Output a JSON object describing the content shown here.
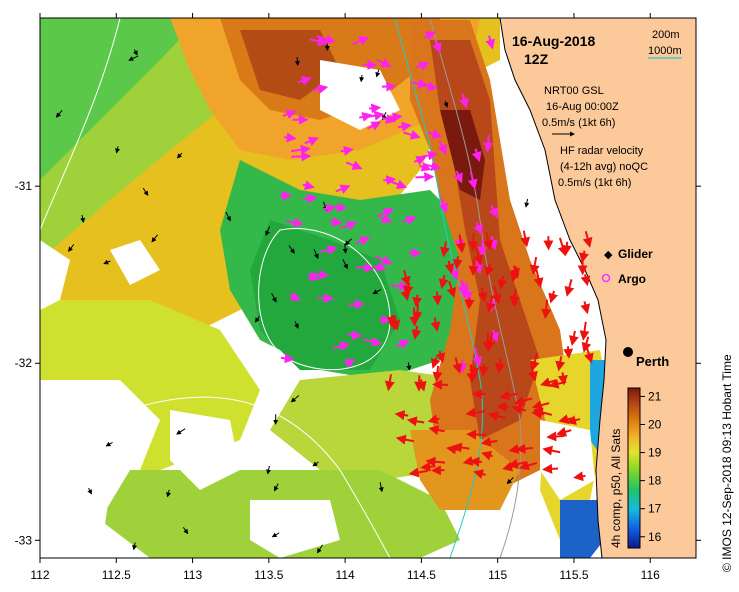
{
  "title": {
    "date": "16-Aug-2018",
    "time": "12Z"
  },
  "isobath_legend": {
    "line1": "200m",
    "line2": "1000m",
    "color_200": "#9a9a9a",
    "color_1000": "#22c9c9"
  },
  "gsl_legend": {
    "line1": "NRT00 GSL",
    "line2": "16-Aug 00:00Z",
    "line3": "0.5m/s (1kt 6h)"
  },
  "hf_legend": {
    "line1": "HF radar velocity",
    "line2": "(4-12h avg) noQC",
    "line3": "0.5m/s (1kt 6h)"
  },
  "markers": {
    "glider": "Glider",
    "argo": "Argo",
    "marker_color": "#ff33ff"
  },
  "place": {
    "name": "Perth"
  },
  "axes": {
    "x_ticks": [
      "112",
      "112.5",
      "113",
      "113.5",
      "114",
      "114.5",
      "115",
      "115.5",
      "116"
    ],
    "y_ticks": [
      "-31",
      "-32",
      "-33"
    ],
    "x_range": [
      112,
      116.3
    ],
    "y_range": [
      -33.1,
      -30.05
    ]
  },
  "colorbar": {
    "label": "4h comp, p50, All Sats",
    "ticks": [
      "21",
      "20",
      "19",
      "18",
      "17",
      "16"
    ],
    "range": [
      15.6,
      21.3
    ],
    "colors": [
      "#0a1a8c",
      "#1060e0",
      "#19b8e0",
      "#1fc26a",
      "#7fd62a",
      "#e3e32a",
      "#f2b12a",
      "#dd7a10",
      "#b64812",
      "#7a1a0e"
    ]
  },
  "credit": "© IMOS 12-Sep-2018 09:13 Hobart Time",
  "colors": {
    "land": "#fbc99a",
    "glider_arrow": "#ff22ee",
    "hf_arrow": "#ee1111",
    "black_arrow": "#000000"
  }
}
